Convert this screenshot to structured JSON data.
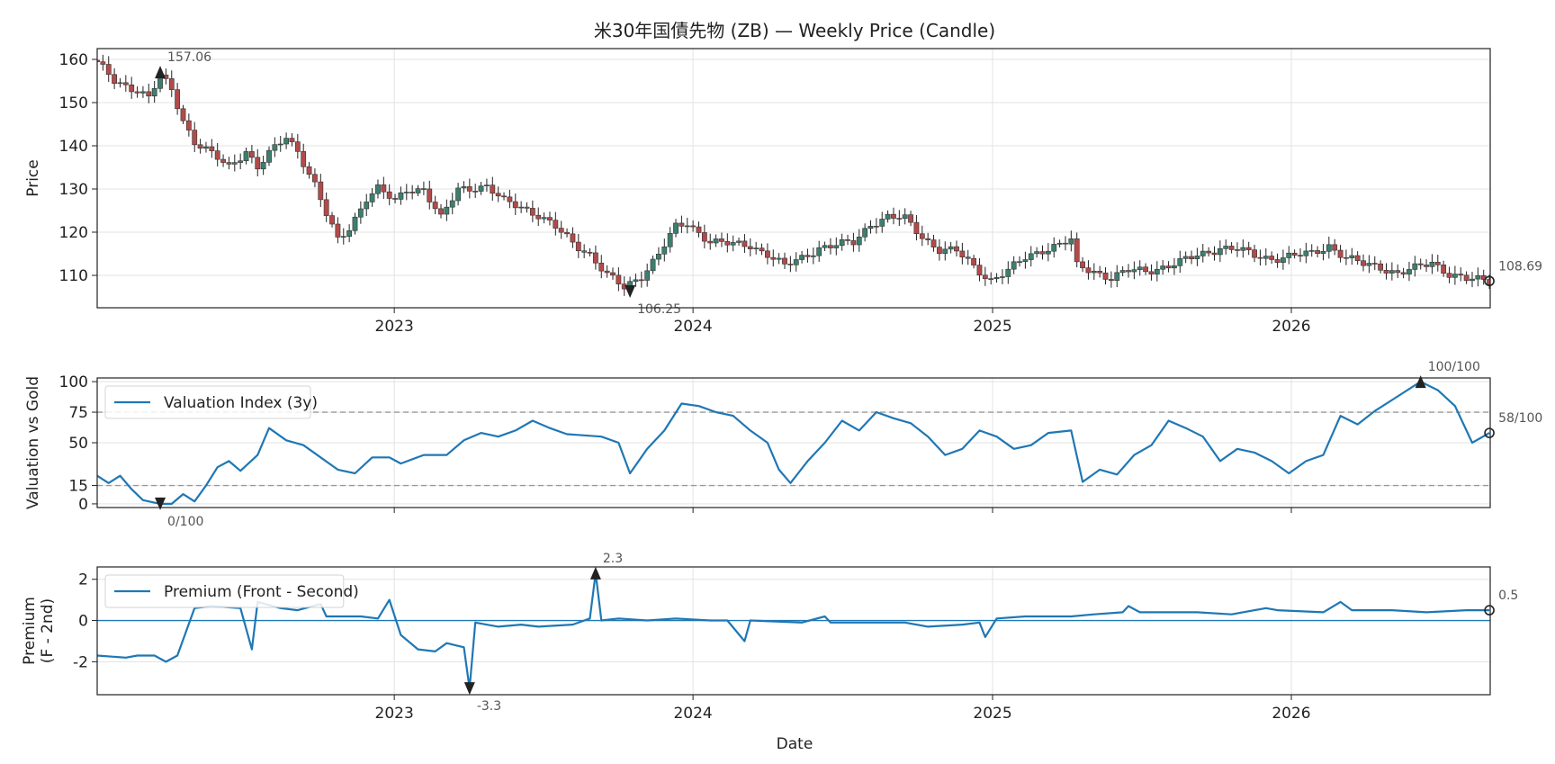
{
  "figure": {
    "title": "米30年国債先物 (ZB) — Weekly Price (Candle)",
    "xlabel": "Date",
    "x_range": [
      "2022-01-03",
      "2026-09-01"
    ],
    "year_ticks": [
      "2023",
      "2024",
      "2025",
      "2026"
    ]
  },
  "colors": {
    "up": "#3d7f6e",
    "down": "#b34a4a",
    "wick": "#222222",
    "line": "#1f77b4",
    "grid": "#e3e3e3",
    "ref": "#999999",
    "marker": "#222222"
  },
  "chart_data": [
    {
      "type": "candlestick",
      "ylabel": "Price",
      "ylim": [
        102.5,
        162.5
      ],
      "yticks": [
        110,
        120,
        130,
        140,
        150,
        160
      ],
      "grid": true,
      "timeframe": "weekly",
      "anchors": [
        [
          "2022-01-03",
          159.0
        ],
        [
          "2022-01-24",
          155.0
        ],
        [
          "2022-02-21",
          153.0
        ],
        [
          "2022-03-07",
          151.0
        ],
        [
          "2022-03-21",
          156.0
        ],
        [
          "2022-04-04",
          153.0
        ],
        [
          "2022-04-18",
          146.0
        ],
        [
          "2022-05-02",
          141.0
        ],
        [
          "2022-05-23",
          138.0
        ],
        [
          "2022-06-13",
          135.0
        ],
        [
          "2022-07-04",
          139.0
        ],
        [
          "2022-07-18",
          135.0
        ],
        [
          "2022-08-01",
          138.0
        ],
        [
          "2022-08-22",
          142.0
        ],
        [
          "2022-09-05",
          139.0
        ],
        [
          "2022-09-26",
          131.0
        ],
        [
          "2022-10-10",
          124.0
        ],
        [
          "2022-10-24",
          118.0
        ],
        [
          "2022-11-07",
          121.0
        ],
        [
          "2022-11-28",
          128.0
        ],
        [
          "2022-12-12",
          130.0
        ],
        [
          "2023-01-02",
          127.0
        ],
        [
          "2023-01-16",
          130.0
        ],
        [
          "2023-02-06",
          130.0
        ],
        [
          "2023-02-27",
          123.0
        ],
        [
          "2023-03-20",
          130.0
        ],
        [
          "2023-04-10",
          130.5
        ],
        [
          "2023-04-24",
          130.5
        ],
        [
          "2023-05-15",
          127.0
        ],
        [
          "2023-06-05",
          126.0
        ],
        [
          "2023-06-26",
          124.0
        ],
        [
          "2023-07-17",
          121.0
        ],
        [
          "2023-08-07",
          117.5
        ],
        [
          "2023-08-28",
          115.0
        ],
        [
          "2023-09-18",
          110.0
        ],
        [
          "2023-10-09",
          107.0
        ],
        [
          "2023-10-30",
          110.0
        ],
        [
          "2023-11-20",
          115.0
        ],
        [
          "2023-12-11",
          121.0
        ],
        [
          "2023-12-25",
          122.0
        ],
        [
          "2024-01-22",
          118.0
        ],
        [
          "2024-02-19",
          117.0
        ],
        [
          "2024-03-11",
          117.0
        ],
        [
          "2024-04-01",
          115.0
        ],
        [
          "2024-04-22",
          112.0
        ],
        [
          "2024-05-13",
          114.0
        ],
        [
          "2024-06-03",
          116.5
        ],
        [
          "2024-06-24",
          117.0
        ],
        [
          "2024-07-15",
          117.5
        ],
        [
          "2024-08-05",
          122.0
        ],
        [
          "2024-08-26",
          123.5
        ],
        [
          "2024-09-16",
          123.0
        ],
        [
          "2024-10-07",
          119.0
        ],
        [
          "2024-10-28",
          116.0
        ],
        [
          "2024-11-18",
          115.5
        ],
        [
          "2024-12-09",
          112.0
        ],
        [
          "2024-12-30",
          109.0
        ],
        [
          "2025-01-20",
          111.0
        ],
        [
          "2025-02-10",
          114.0
        ],
        [
          "2025-03-03",
          116.0
        ],
        [
          "2025-04-07",
          118.0
        ],
        [
          "2025-04-14",
          112.0
        ],
        [
          "2025-05-05",
          111.0
        ],
        [
          "2025-05-26",
          109.5
        ],
        [
          "2025-06-16",
          111.0
        ],
        [
          "2025-07-07",
          111.0
        ],
        [
          "2025-07-28",
          112.0
        ],
        [
          "2025-08-18",
          113.0
        ],
        [
          "2025-09-15",
          115.0
        ],
        [
          "2025-10-06",
          116.5
        ],
        [
          "2025-10-27",
          116.0
        ],
        [
          "2025-11-17",
          114.5
        ],
        [
          "2025-12-08",
          114.0
        ],
        [
          "2026-01-05",
          114.5
        ],
        [
          "2026-01-26",
          115.0
        ],
        [
          "2026-02-16",
          117.0
        ],
        [
          "2026-03-09",
          114.0
        ],
        [
          "2026-03-30",
          112.5
        ],
        [
          "2026-04-20",
          112.0
        ],
        [
          "2026-05-11",
          110.5
        ],
        [
          "2026-06-01",
          111.5
        ],
        [
          "2026-06-22",
          113.0
        ],
        [
          "2026-07-13",
          110.5
        ],
        [
          "2026-08-03",
          109.0
        ],
        [
          "2026-08-31",
          108.69
        ]
      ],
      "annotations": {
        "max": {
          "date": "2022-03-21",
          "value": 157.06,
          "label": "157.06"
        },
        "min": {
          "date": "2023-10-16",
          "value": 106.25,
          "label": "106.25"
        },
        "last": {
          "date": "2026-08-31",
          "value": 108.69,
          "label": "108.69"
        }
      }
    },
    {
      "type": "line",
      "ylabel": "Valuation vs Gold",
      "ylim": [
        -3,
        103
      ],
      "yticks": [
        0,
        15,
        50,
        75,
        100
      ],
      "ref_lines": [
        15,
        75
      ],
      "grid": true,
      "legend": "top-left",
      "series": [
        {
          "name": "Valuation Index (3y)",
          "anchors": [
            [
              "2022-01-03",
              23
            ],
            [
              "2022-01-17",
              17
            ],
            [
              "2022-01-31",
              23
            ],
            [
              "2022-02-14",
              12
            ],
            [
              "2022-02-28",
              3
            ],
            [
              "2022-03-21",
              0
            ],
            [
              "2022-04-04",
              0
            ],
            [
              "2022-04-18",
              8
            ],
            [
              "2022-05-02",
              2
            ],
            [
              "2022-05-16",
              15
            ],
            [
              "2022-05-30",
              30
            ],
            [
              "2022-06-13",
              35
            ],
            [
              "2022-06-27",
              27
            ],
            [
              "2022-07-18",
              40
            ],
            [
              "2022-08-01",
              62
            ],
            [
              "2022-08-22",
              52
            ],
            [
              "2022-09-12",
              48
            ],
            [
              "2022-10-03",
              38
            ],
            [
              "2022-10-24",
              28
            ],
            [
              "2022-11-14",
              25
            ],
            [
              "2022-12-05",
              38
            ],
            [
              "2022-12-26",
              38
            ],
            [
              "2023-01-09",
              33
            ],
            [
              "2023-02-06",
              40
            ],
            [
              "2023-03-06",
              40
            ],
            [
              "2023-03-27",
              52
            ],
            [
              "2023-04-17",
              58
            ],
            [
              "2023-05-08",
              55
            ],
            [
              "2023-05-29",
              60
            ],
            [
              "2023-06-19",
              68
            ],
            [
              "2023-07-10",
              62
            ],
            [
              "2023-07-31",
              57
            ],
            [
              "2023-08-21",
              56
            ],
            [
              "2023-09-11",
              55
            ],
            [
              "2023-10-02",
              50
            ],
            [
              "2023-10-16",
              25
            ],
            [
              "2023-11-06",
              45
            ],
            [
              "2023-11-27",
              60
            ],
            [
              "2023-12-18",
              82
            ],
            [
              "2024-01-08",
              80
            ],
            [
              "2024-01-29",
              75
            ],
            [
              "2024-02-19",
              72
            ],
            [
              "2024-03-11",
              60
            ],
            [
              "2024-04-01",
              50
            ],
            [
              "2024-04-15",
              28
            ],
            [
              "2024-04-29",
              17
            ],
            [
              "2024-05-20",
              35
            ],
            [
              "2024-06-10",
              50
            ],
            [
              "2024-07-01",
              68
            ],
            [
              "2024-07-22",
              60
            ],
            [
              "2024-08-12",
              75
            ],
            [
              "2024-09-02",
              70
            ],
            [
              "2024-09-23",
              66
            ],
            [
              "2024-10-14",
              55
            ],
            [
              "2024-11-04",
              40
            ],
            [
              "2024-11-25",
              45
            ],
            [
              "2024-12-16",
              60
            ],
            [
              "2025-01-06",
              55
            ],
            [
              "2025-01-27",
              45
            ],
            [
              "2025-02-17",
              48
            ],
            [
              "2025-03-10",
              58
            ],
            [
              "2025-04-07",
              60
            ],
            [
              "2025-04-21",
              18
            ],
            [
              "2025-05-12",
              28
            ],
            [
              "2025-06-02",
              24
            ],
            [
              "2025-06-23",
              40
            ],
            [
              "2025-07-14",
              48
            ],
            [
              "2025-08-04",
              68
            ],
            [
              "2025-08-25",
              62
            ],
            [
              "2025-09-15",
              55
            ],
            [
              "2025-10-06",
              35
            ],
            [
              "2025-10-27",
              45
            ],
            [
              "2025-11-17",
              42
            ],
            [
              "2025-12-08",
              35
            ],
            [
              "2025-12-29",
              25
            ],
            [
              "2026-01-19",
              35
            ],
            [
              "2026-02-09",
              40
            ],
            [
              "2026-03-02",
              72
            ],
            [
              "2026-03-23",
              65
            ],
            [
              "2026-04-13",
              76
            ],
            [
              "2026-05-04",
              85
            ],
            [
              "2026-06-08",
              100
            ],
            [
              "2026-06-29",
              93
            ],
            [
              "2026-07-20",
              80
            ],
            [
              "2026-08-10",
              50
            ],
            [
              "2026-08-31",
              58
            ]
          ]
        }
      ],
      "annotations": {
        "max": {
          "date": "2026-06-08",
          "value": 100,
          "label": "100/100"
        },
        "min": {
          "date": "2022-03-21",
          "value": 0,
          "label": "0/100"
        },
        "last": {
          "date": "2026-08-31",
          "value": 58,
          "label": "58/100"
        }
      }
    },
    {
      "type": "line",
      "ylabel": "Premium\n(F - 2nd)",
      "ylim": [
        -3.6,
        2.6
      ],
      "yticks": [
        -2,
        0,
        2
      ],
      "ref_lines": [
        0
      ],
      "grid": true,
      "legend": "top-left",
      "series": [
        {
          "name": "Premium (Front - Second)",
          "anchors": [
            [
              "2022-01-03",
              -1.7
            ],
            [
              "2022-02-07",
              -1.8
            ],
            [
              "2022-02-21",
              -1.7
            ],
            [
              "2022-03-14",
              -1.7
            ],
            [
              "2022-03-28",
              -2.0
            ],
            [
              "2022-04-11",
              -1.7
            ],
            [
              "2022-05-02",
              0.6
            ],
            [
              "2022-05-23",
              0.7
            ],
            [
              "2022-06-27",
              0.6
            ],
            [
              "2022-07-11",
              -1.4
            ],
            [
              "2022-07-18",
              0.9
            ],
            [
              "2022-08-15",
              0.6
            ],
            [
              "2022-09-05",
              0.5
            ],
            [
              "2022-10-03",
              0.8
            ],
            [
              "2022-10-10",
              0.2
            ],
            [
              "2022-10-24",
              0.2
            ],
            [
              "2022-11-21",
              0.2
            ],
            [
              "2022-12-12",
              0.1
            ],
            [
              "2022-12-26",
              1.0
            ],
            [
              "2023-01-09",
              -0.7
            ],
            [
              "2023-01-30",
              -1.4
            ],
            [
              "2023-02-20",
              -1.5
            ],
            [
              "2023-03-06",
              -1.1
            ],
            [
              "2023-03-27",
              -1.3
            ],
            [
              "2023-04-03",
              -3.3
            ],
            [
              "2023-04-10",
              -0.1
            ],
            [
              "2023-05-08",
              -0.3
            ],
            [
              "2023-06-05",
              -0.2
            ],
            [
              "2023-06-26",
              -0.3
            ],
            [
              "2023-08-07",
              -0.2
            ],
            [
              "2023-08-28",
              0.1
            ],
            [
              "2023-09-04",
              2.3
            ],
            [
              "2023-09-11",
              0.0
            ],
            [
              "2023-10-02",
              0.1
            ],
            [
              "2023-11-06",
              0.0
            ],
            [
              "2023-12-11",
              0.1
            ],
            [
              "2024-01-22",
              0.0
            ],
            [
              "2024-02-12",
              0.0
            ],
            [
              "2024-03-04",
              -1.0
            ],
            [
              "2024-03-11",
              0.0
            ],
            [
              "2024-05-13",
              -0.1
            ],
            [
              "2024-06-10",
              0.2
            ],
            [
              "2024-06-17",
              -0.1
            ],
            [
              "2024-08-19",
              -0.1
            ],
            [
              "2024-09-16",
              -0.1
            ],
            [
              "2024-10-14",
              -0.3
            ],
            [
              "2024-11-25",
              -0.2
            ],
            [
              "2024-12-16",
              -0.1
            ],
            [
              "2024-12-23",
              -0.8
            ],
            [
              "2025-01-06",
              0.1
            ],
            [
              "2025-02-10",
              0.2
            ],
            [
              "2025-04-07",
              0.2
            ],
            [
              "2025-05-05",
              0.3
            ],
            [
              "2025-06-09",
              0.4
            ],
            [
              "2025-06-16",
              0.7
            ],
            [
              "2025-06-30",
              0.4
            ],
            [
              "2025-09-08",
              0.4
            ],
            [
              "2025-10-20",
              0.3
            ],
            [
              "2025-12-01",
              0.6
            ],
            [
              "2025-12-15",
              0.5
            ],
            [
              "2026-02-09",
              0.4
            ],
            [
              "2026-03-02",
              0.9
            ],
            [
              "2026-03-16",
              0.5
            ],
            [
              "2026-05-04",
              0.5
            ],
            [
              "2026-06-15",
              0.4
            ],
            [
              "2026-08-03",
              0.5
            ],
            [
              "2026-08-31",
              0.5
            ]
          ]
        }
      ],
      "annotations": {
        "max": {
          "date": "2023-09-04",
          "value": 2.3,
          "label": "2.3"
        },
        "min": {
          "date": "2023-04-03",
          "value": -3.3,
          "label": "-3.3"
        },
        "last": {
          "date": "2026-08-31",
          "value": 0.5,
          "label": "0.5"
        }
      }
    }
  ]
}
